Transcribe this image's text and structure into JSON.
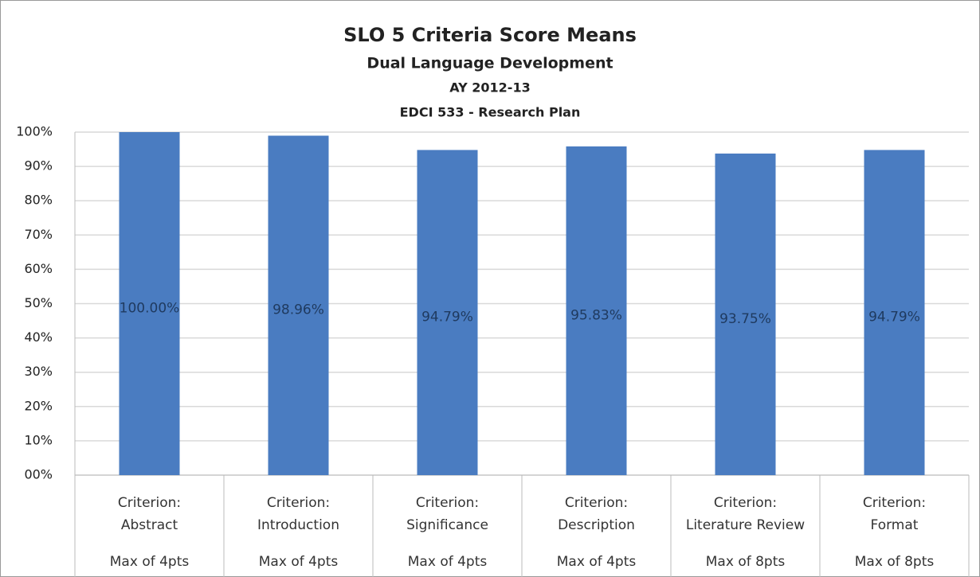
{
  "chart_data": {
    "type": "bar",
    "title": "SLO 5 Criteria Score Means",
    "subtitles": [
      "Dual Language Development",
      "AY 2012-13",
      "EDCI 533 - Research Plan"
    ],
    "categories": [
      [
        "Criterion:",
        "Abstract"
      ],
      [
        "Criterion:",
        "Introduction"
      ],
      [
        "Criterion:",
        "Significance"
      ],
      [
        "Criterion:",
        "Description"
      ],
      [
        "Criterion:",
        "Literature Review"
      ],
      [
        "Criterion:",
        "Format"
      ]
    ],
    "category_groups": [
      "Max of 4pts",
      "Max of 4pts",
      "Max of 4pts",
      "Max of 4pts",
      "Max of 8pts",
      "Max of 8pts"
    ],
    "values": [
      100,
      98.96,
      94.79,
      95.83,
      93.75,
      94.79
    ],
    "value_labels": [
      "100.00%",
      "98.96%",
      "94.79%",
      "95.83%",
      "93.75%",
      "94.79%"
    ],
    "color": "#4a7cc1",
    "ylim": [
      0,
      100
    ],
    "yticks": [
      {
        "value": 0,
        "label": "00%"
      },
      {
        "value": 10,
        "label": "10%"
      },
      {
        "value": 20,
        "label": "20%"
      },
      {
        "value": 30,
        "label": "30%"
      },
      {
        "value": 40,
        "label": "40%"
      },
      {
        "value": 50,
        "label": "50%"
      },
      {
        "value": 60,
        "label": "60%"
      },
      {
        "value": 70,
        "label": "70%"
      },
      {
        "value": 80,
        "label": "80%"
      },
      {
        "value": 90,
        "label": "90%"
      },
      {
        "value": 100,
        "label": "100%"
      }
    ],
    "grid": true
  }
}
